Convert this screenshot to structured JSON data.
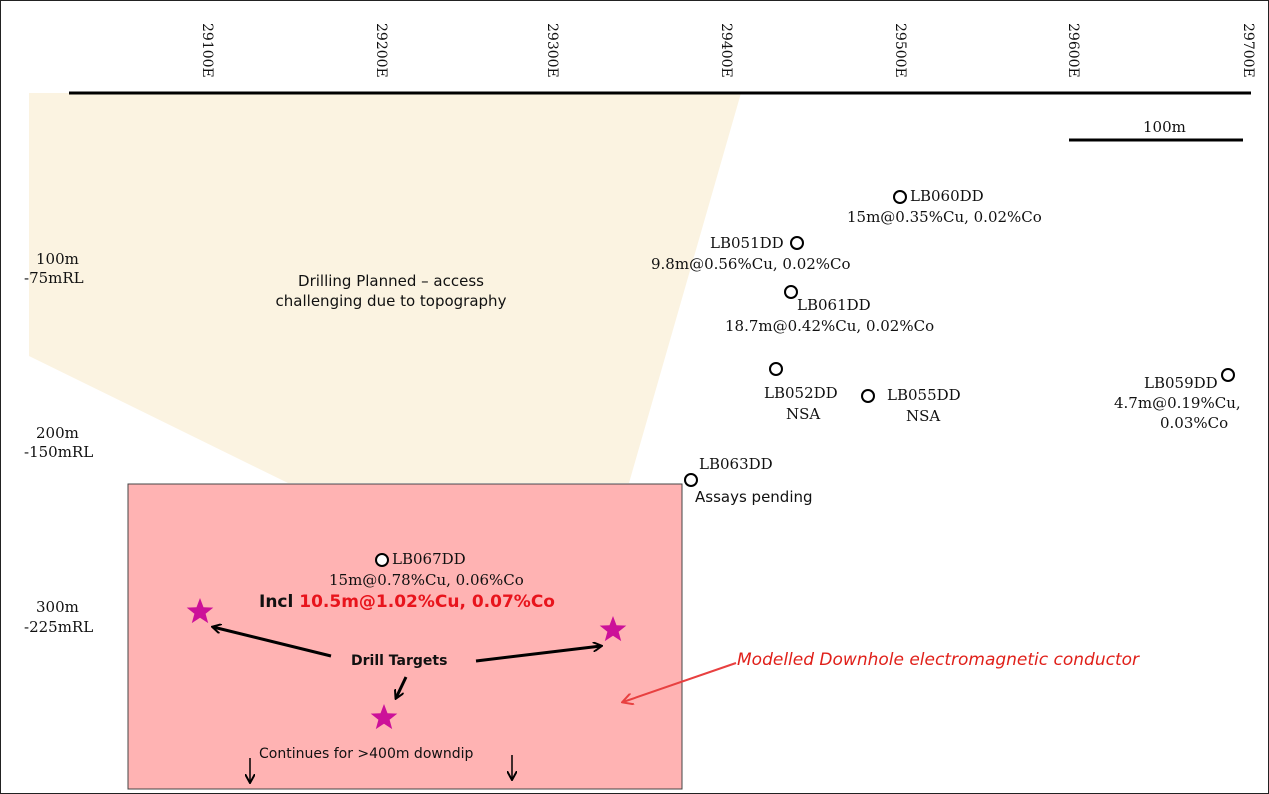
{
  "colors": {
    "planned_zone": "#fbf3e1",
    "target_box": "#ffb3b3",
    "star": "#cc1199",
    "highlight_red": "#e8141c",
    "conductor_arrow": "#e84040"
  },
  "axis": {
    "eastings": [
      "29100E",
      "29200E",
      "29300E",
      "29400E",
      "29500E",
      "29600E",
      "29700E"
    ]
  },
  "scale_bar": {
    "label": "100m"
  },
  "depth_labels": [
    {
      "depth": "100m",
      "rl": "-75mRL"
    },
    {
      "depth": "200m",
      "rl": "-150mRL"
    },
    {
      "depth": "300m",
      "rl": "-225mRL"
    }
  ],
  "planned_zone": {
    "line1": "Drilling Planned – access",
    "line2": "challenging due to topography"
  },
  "holes": {
    "lb060": {
      "name": "LB060DD",
      "result": "15m@0.35%Cu, 0.02%Co"
    },
    "lb051": {
      "name": "LB051DD",
      "result": "9.8m@0.56%Cu, 0.02%Co"
    },
    "lb061": {
      "name": "LB061DD",
      "result": "18.7m@0.42%Cu, 0.02%Co"
    },
    "lb052": {
      "name": "LB052DD",
      "result": "NSA"
    },
    "lb055": {
      "name": "LB055DD",
      "result": "NSA"
    },
    "lb059": {
      "name": "LB059DD",
      "result_line1": "4.7m@0.19%Cu,",
      "result_line2": "0.03%Co"
    },
    "lb063": {
      "name": "LB063DD",
      "result": "Assays pending"
    },
    "lb067": {
      "name": "LB067DD",
      "result": "15m@0.78%Cu, 0.06%Co",
      "incl_prefix": "Incl",
      "incl_value": "10.5m@1.02%Cu, 0.07%Co"
    }
  },
  "targets": {
    "label": "Drill Targets",
    "continues": "Continues for >400m downdip"
  },
  "conductor": {
    "label": "Modelled Downhole electromagnetic conductor"
  }
}
